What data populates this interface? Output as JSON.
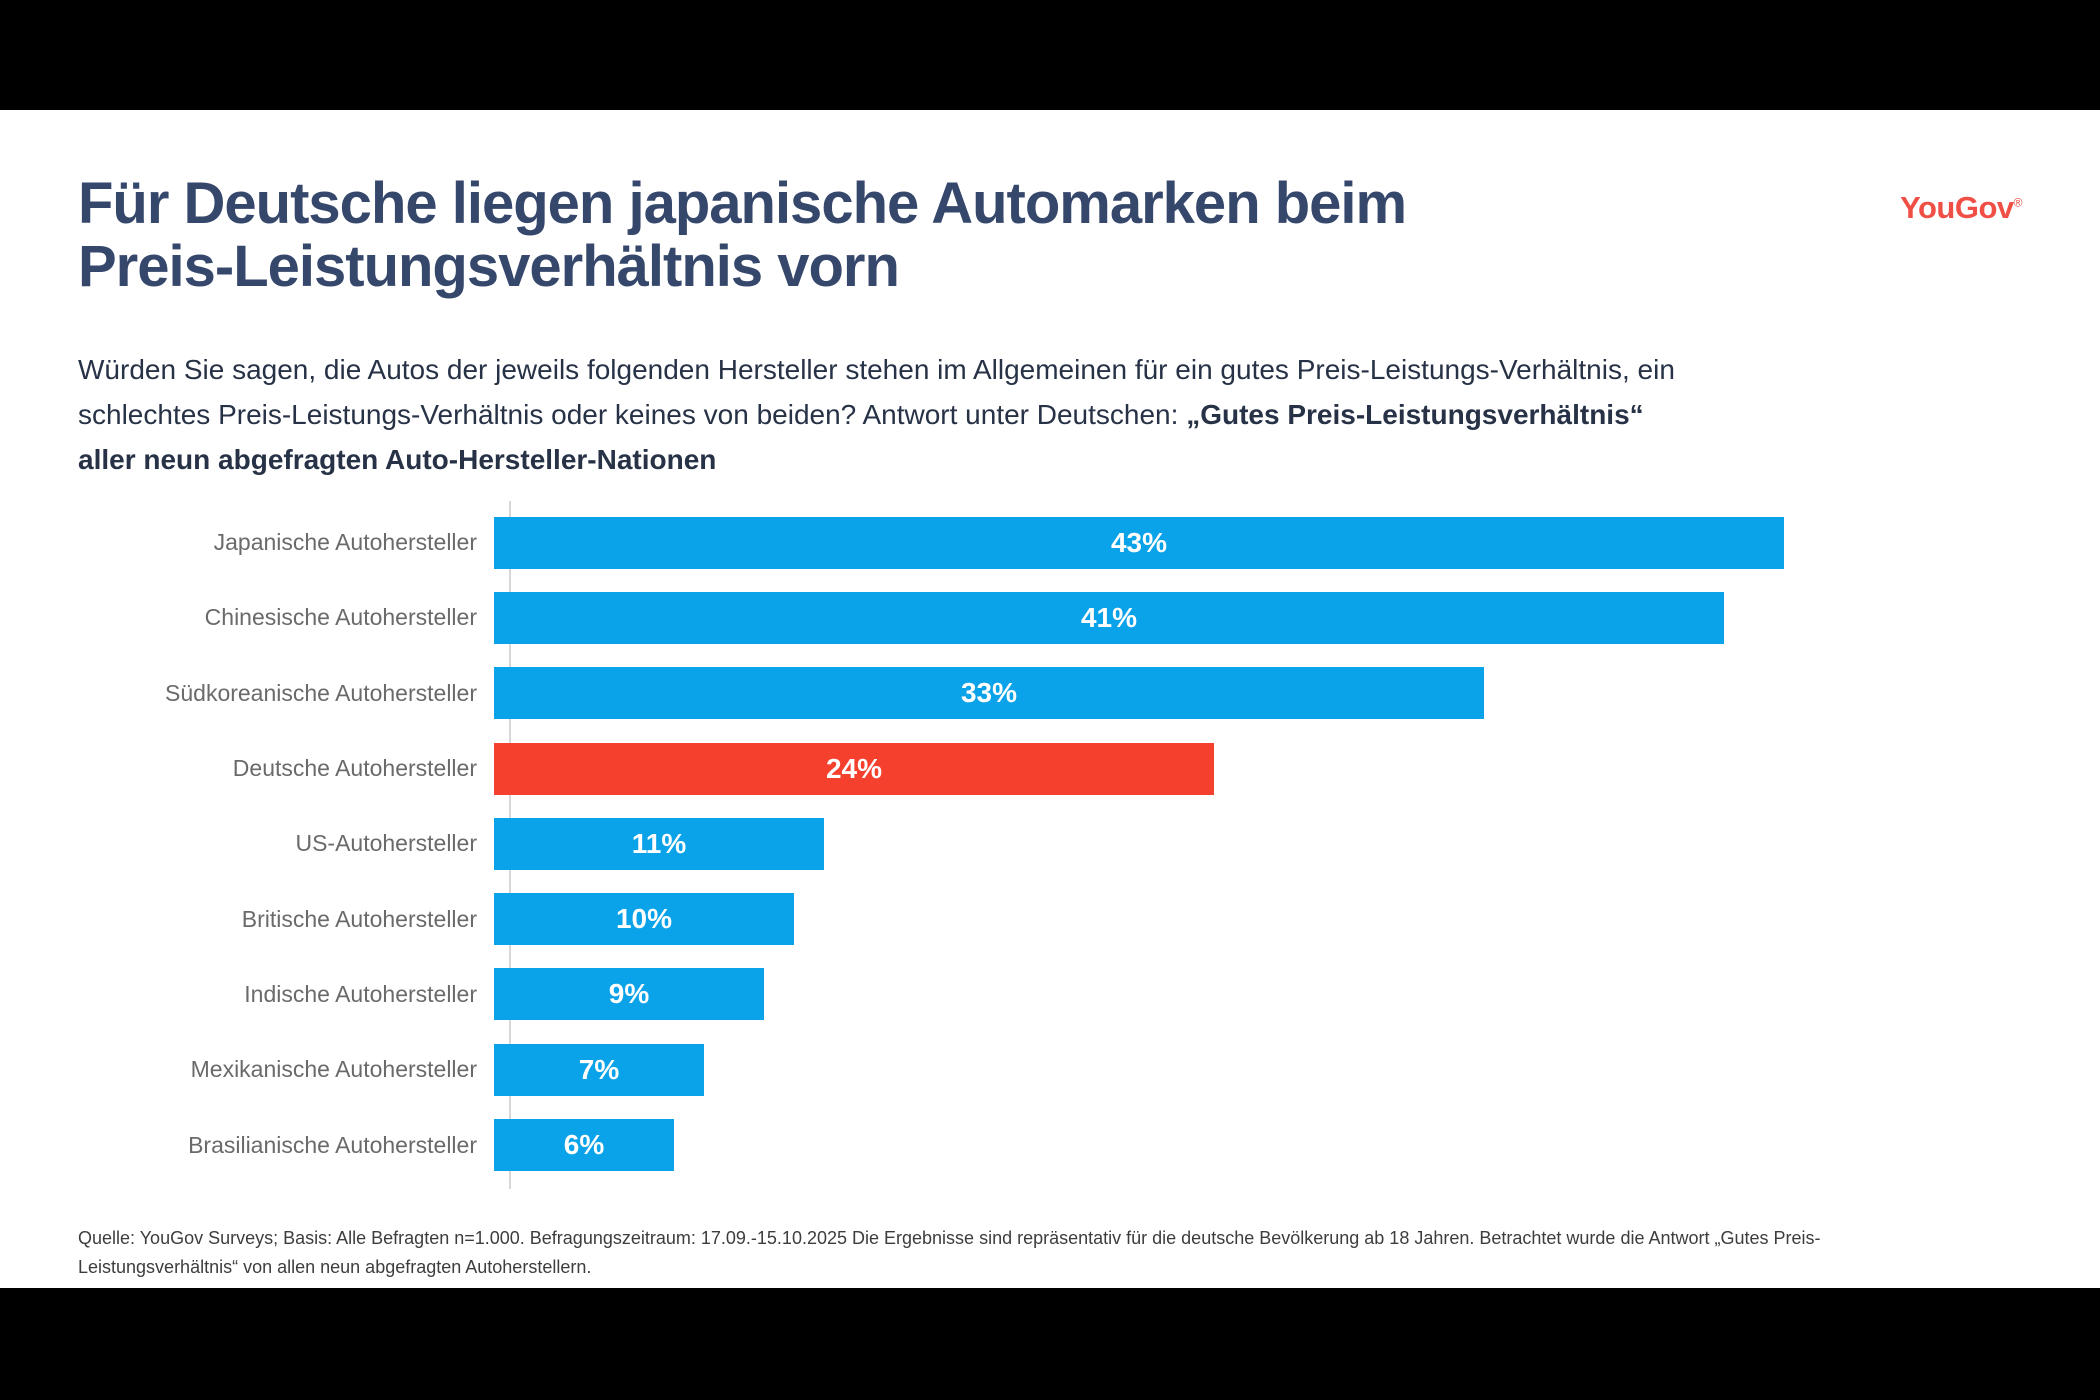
{
  "slide": {
    "title_line1": "Für Deutsche liegen japanische Automarken beim",
    "title_line2": "Preis-Leistungsverhältnis vorn",
    "subtitle": {
      "line1": "Würden Sie sagen, die Autos der jeweils folgenden Hersteller stehen im Allgemeinen für ein gutes Preis-Leistungs-Verhältnis, ein",
      "line2_regular": "schlechtes Preis-Leistungs-Verhältnis oder keines von beiden? Antwort unter Deutschen: ",
      "line2_bold": "„Gutes Preis-Leistungsverhältnis“",
      "line3_bold": "aller neun abgefragten Auto-Hersteller-Nationen"
    },
    "logo": {
      "text": "YouGov",
      "mark": "®"
    },
    "footer_line1": "Quelle: YouGov Surveys; Basis: Alle Befragten n=1.000. Befragungszeitraum: 17.09.-15.10.2025 Die Ergebnisse sind repräsentativ für die deutsche Bevölkerung ab 18 Jahren. Betrachtet wurde die Antwort „Gutes Preis-",
    "footer_line2": "Leistungsverhältnis“ von allen neun abgefragten Autoherstellern."
  },
  "colors": {
    "bar_blue": "#0aa2e8",
    "bar_highlight_red": "#f6402e",
    "title_navy": "#36476c",
    "label_gray": "#6a6a6a",
    "logo_red": "#f04f46"
  },
  "chart_data": {
    "type": "bar",
    "orientation": "horizontal",
    "title": "",
    "xlabel": "",
    "ylabel": "",
    "categories": [
      "Japanische Autohersteller",
      "Chinesische Autohersteller",
      "Südkoreanische Autohersteller",
      "Deutsche Autohersteller",
      "US-Autohersteller",
      "Britische Autohersteller",
      "Indische Autohersteller",
      "Mexikanische Autohersteller",
      "Brasilianische Autohersteller"
    ],
    "values": [
      43,
      41,
      33,
      24,
      11,
      10,
      9,
      7,
      6
    ],
    "value_labels": [
      "43%",
      "41%",
      "33%",
      "24%",
      "11%",
      "10%",
      "9%",
      "7%",
      "6%"
    ],
    "highlight_category": "Deutsche Autohersteller",
    "xlim": [
      0,
      50
    ],
    "grid": false,
    "legend": false,
    "value_label_position": "inside-center"
  }
}
